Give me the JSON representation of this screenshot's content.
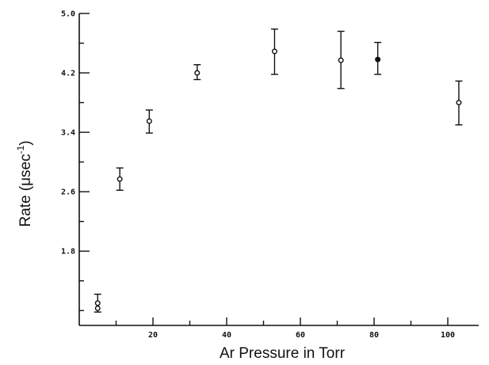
{
  "chart_data": {
    "type": "scatter",
    "title": "",
    "xlabel": "Ar Pressure in Torr",
    "ylabel_base": "Rate (μsec",
    "ylabel_sup": "-1",
    "ylabel_close": ")",
    "xlim": [
      0,
      110
    ],
    "ylim": [
      0.8,
      5.0
    ],
    "x_major_ticks": [
      20,
      40,
      60,
      80,
      100
    ],
    "x_minor_ticks": [
      10,
      30,
      50,
      70,
      90
    ],
    "x_tick_labels": [
      "20",
      "40",
      "60",
      "80",
      "100"
    ],
    "y_labeled_ticks": [
      1.8,
      2.6,
      3.4,
      4.2,
      5.0
    ],
    "y_minor_ticks": [
      1.0,
      1.4,
      2.2,
      3.0,
      3.8,
      4.6
    ],
    "y_tick_labels": [
      "1.8",
      "2.6",
      "3.4",
      "4.2",
      "5.0"
    ],
    "grid": false,
    "points": [
      {
        "x": 5,
        "y": 1.1,
        "err_low": 0.98,
        "err_high": 1.22,
        "marker": "open"
      },
      {
        "x": 5,
        "y": 1.03,
        "err_low": null,
        "err_high": null,
        "marker": "open"
      },
      {
        "x": 11,
        "y": 2.77,
        "err_low": 2.62,
        "err_high": 2.92,
        "marker": "open"
      },
      {
        "x": 19,
        "y": 3.55,
        "err_low": 3.39,
        "err_high": 3.7,
        "marker": "open"
      },
      {
        "x": 32,
        "y": 4.2,
        "err_low": 4.11,
        "err_high": 4.31,
        "marker": "open"
      },
      {
        "x": 53,
        "y": 4.49,
        "err_low": 4.18,
        "err_high": 4.79,
        "marker": "open"
      },
      {
        "x": 71,
        "y": 4.37,
        "err_low": 3.99,
        "err_high": 4.76,
        "marker": "open"
      },
      {
        "x": 81,
        "y": 4.38,
        "err_low": 4.18,
        "err_high": 4.61,
        "marker": "filled"
      },
      {
        "x": 103,
        "y": 3.8,
        "err_low": 3.5,
        "err_high": 4.09,
        "marker": "open"
      }
    ]
  }
}
